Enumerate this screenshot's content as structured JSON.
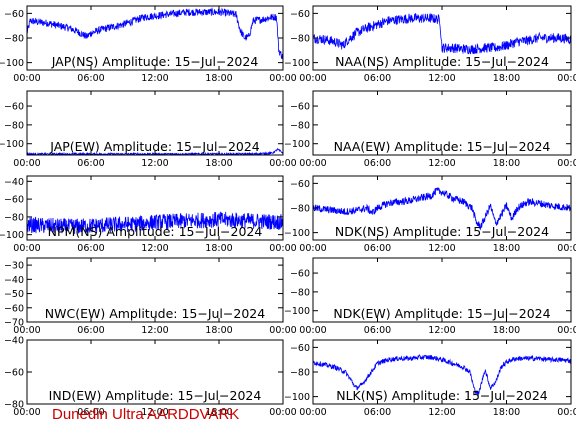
{
  "footer": {
    "text": "Dunedin Ultra AARDDVARK",
    "color": "#cc0000"
  },
  "colors": {
    "signal": "#0000ff",
    "axis": "#000000",
    "background": "#ffffff"
  },
  "chart_data": [
    {
      "type": "line",
      "title": "JAP(NS) Amplitude: 15-Jul-2024",
      "xlabel": "",
      "ylabel": "",
      "xlim": [
        0,
        24
      ],
      "ylim": [
        -106,
        -54
      ],
      "xticks": [
        "00:00",
        "06:00",
        "12:00",
        "18:00",
        "00:00"
      ],
      "yticks": [
        -100,
        -80,
        -60
      ],
      "series": [
        {
          "x": [
            0,
            0.3,
            1,
            2,
            3,
            4,
            5,
            5.6,
            6,
            7,
            8,
            9,
            10,
            11,
            12,
            13,
            14,
            15,
            16,
            17,
            18,
            19,
            19.6,
            20,
            20.4,
            20.8,
            21.2,
            22,
            23,
            23.4,
            23.6,
            24
          ],
          "y": [
            -76,
            -66,
            -67,
            -68,
            -70,
            -72,
            -76,
            -79,
            -76,
            -73,
            -71,
            -69,
            -66,
            -63,
            -62,
            -61,
            -60,
            -59,
            -59,
            -59,
            -59,
            -60,
            -61,
            -74,
            -80,
            -79,
            -66,
            -65,
            -63,
            -63,
            -90,
            -96
          ],
          "noise": 3
        }
      ]
    },
    {
      "type": "line",
      "title": "NAA(NS) Amplitude: 15-Jul-2024",
      "xlabel": "",
      "ylabel": "",
      "xlim": [
        0,
        24
      ],
      "ylim": [
        -106,
        -54
      ],
      "xticks": [
        "00:00",
        "06:00",
        "12:00",
        "18:00",
        "00:00"
      ],
      "yticks": [
        -100,
        -80,
        -60
      ],
      "series": [
        {
          "x": [
            0,
            1,
            2,
            2.8,
            3.2,
            4,
            5,
            6,
            7,
            8,
            9,
            10,
            11,
            11.8,
            12,
            13,
            14,
            15,
            16,
            17,
            18,
            19,
            20,
            21,
            22,
            23,
            24
          ],
          "y": [
            -80,
            -81,
            -83,
            -86,
            -82,
            -76,
            -72,
            -69,
            -66,
            -65,
            -64,
            -64,
            -64,
            -65,
            -88,
            -88,
            -89,
            -89,
            -88,
            -88,
            -86,
            -83,
            -82,
            -80,
            -80,
            -80,
            -81
          ],
          "noise": 4
        }
      ]
    },
    {
      "type": "line",
      "title": "JAP(EW) Amplitude: 15-Jul-2024",
      "xlabel": "",
      "ylabel": "",
      "xlim": [
        0,
        24
      ],
      "ylim": [
        -112,
        -44
      ],
      "xticks": [
        "00:00",
        "06:00",
        "12:00",
        "18:00",
        "00:00"
      ],
      "yticks": [
        -100,
        -80,
        -60
      ],
      "series": [
        {
          "x": [
            0,
            3,
            6,
            9,
            12,
            15,
            18,
            21,
            23,
            23.5,
            24
          ],
          "y": [
            -111,
            -111,
            -111,
            -111,
            -111,
            -111,
            -111,
            -111,
            -110,
            -106,
            -110
          ],
          "noise": 1
        }
      ]
    },
    {
      "type": "line",
      "title": "NAA(EW) Amplitude: 15-Jul-2024",
      "xlabel": "",
      "ylabel": "",
      "xlim": [
        0,
        24
      ],
      "ylim": [
        -112,
        -44
      ],
      "xticks": [
        "00:00",
        "06:00",
        "12:00",
        "18:00",
        "00:00"
      ],
      "yticks": [
        -100,
        -80,
        -60
      ],
      "series": []
    },
    {
      "type": "line",
      "title": "NPM(NS) Amplitude: 15-Jul-2024",
      "xlabel": "",
      "ylabel": "",
      "xlim": [
        0,
        24
      ],
      "ylim": [
        -106,
        -34
      ],
      "xticks": [
        "00:00",
        "06:00",
        "12:00",
        "18:00",
        "00:00"
      ],
      "yticks": [
        -100,
        -80,
        -60,
        -40
      ],
      "series": [
        {
          "x": [
            0,
            2,
            4,
            6,
            8,
            10,
            12,
            14,
            16,
            18,
            20,
            22,
            24
          ],
          "y": [
            -89,
            -90,
            -91,
            -90,
            -89,
            -88,
            -86,
            -85,
            -84,
            -83,
            -84,
            -85,
            -86
          ],
          "noise": 9
        }
      ]
    },
    {
      "type": "line",
      "title": "NDK(NS) Amplitude: 15-Jul-2024",
      "xlabel": "",
      "ylabel": "",
      "xlim": [
        0,
        24
      ],
      "ylim": [
        -106,
        -54
      ],
      "xticks": [
        "00:00",
        "06:00",
        "12:00",
        "18:00",
        "00:00"
      ],
      "yticks": [
        -100,
        -80,
        -60
      ],
      "series": [
        {
          "x": [
            0,
            1,
            2,
            3,
            4,
            5,
            5.5,
            6,
            7,
            8,
            9,
            10,
            11,
            11.5,
            12,
            13,
            14,
            14.8,
            15.2,
            15.6,
            16,
            16.5,
            17,
            17.5,
            18,
            18.5,
            19,
            20,
            21,
            22,
            23,
            24
          ],
          "y": [
            -80,
            -81,
            -82,
            -83,
            -82,
            -80,
            -84,
            -80,
            -76,
            -75,
            -74,
            -72,
            -70,
            -66,
            -67,
            -72,
            -75,
            -80,
            -92,
            -95,
            -88,
            -78,
            -93,
            -86,
            -78,
            -89,
            -80,
            -75,
            -76,
            -78,
            -79,
            -80
          ],
          "noise": 3
        }
      ]
    },
    {
      "type": "line",
      "title": "NWC(EW) Amplitude: 15-Jul-2024",
      "xlabel": "",
      "ylabel": "",
      "xlim": [
        0,
        24
      ],
      "ylim": [
        -70,
        -25
      ],
      "xticks": [
        "00:00",
        "06:00",
        "12:00",
        "18:00",
        "00:00"
      ],
      "yticks": [
        -70,
        -60,
        -50,
        -40,
        -30
      ],
      "series": []
    },
    {
      "type": "line",
      "title": "NDK(EW) Amplitude: 15-Jul-2024",
      "xlabel": "",
      "ylabel": "",
      "xlim": [
        0,
        24
      ],
      "ylim": [
        -112,
        -44
      ],
      "xticks": [
        "00:00",
        "06:00",
        "12:00",
        "18:00",
        "00:00"
      ],
      "yticks": [
        -100,
        -80,
        -60
      ],
      "series": []
    },
    {
      "type": "line",
      "title": "IND(EW) Amplitude: 15-Jul-2024",
      "xlabel": "",
      "ylabel": "",
      "xlim": [
        0,
        24
      ],
      "ylim": [
        -80,
        -40
      ],
      "xticks": [
        "00:00",
        "06:00",
        "12:00",
        "18:00",
        "00:00"
      ],
      "yticks": [
        -80,
        -60,
        -40
      ],
      "series": []
    },
    {
      "type": "line",
      "title": "NLK(NS) Amplitude: 15-Jul-2024",
      "xlabel": "",
      "ylabel": "",
      "xlim": [
        0,
        24
      ],
      "ylim": [
        -106,
        -54
      ],
      "xticks": [
        "00:00",
        "06:00",
        "12:00",
        "18:00",
        "00:00"
      ],
      "yticks": [
        -100,
        -80,
        -60
      ],
      "series": [
        {
          "x": [
            0,
            1,
            2,
            3,
            3.5,
            4,
            4.5,
            5,
            6,
            7,
            8,
            9,
            10,
            11,
            12,
            13,
            14,
            14.6,
            15,
            15.4,
            16,
            16.5,
            17,
            17.5,
            18,
            18.5,
            19,
            20,
            21,
            22,
            23,
            24
          ],
          "y": [
            -72,
            -74,
            -76,
            -80,
            -86,
            -93,
            -91,
            -85,
            -73,
            -70,
            -69,
            -69,
            -68,
            -68,
            -70,
            -73,
            -76,
            -80,
            -94,
            -98,
            -78,
            -93,
            -88,
            -76,
            -72,
            -70,
            -69,
            -69,
            -69,
            -70,
            -70,
            -71
          ],
          "noise": 2
        }
      ]
    }
  ]
}
